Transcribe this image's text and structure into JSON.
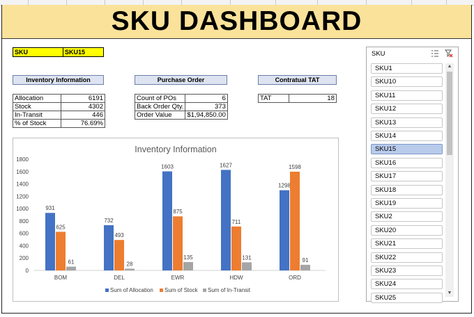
{
  "title": "SKU DASHBOARD",
  "sku_selector": {
    "label": "SKU",
    "value": "SKU15"
  },
  "inventory": {
    "header": "Inventory Information",
    "rows": [
      {
        "label": "Allocation",
        "value": "6191"
      },
      {
        "label": "Stock",
        "value": "4302"
      },
      {
        "label": "In-Transit",
        "value": "446"
      },
      {
        "label": "% of Stock",
        "value": "76.69%"
      }
    ]
  },
  "purchase_order": {
    "header": "Purchase Order",
    "rows": [
      {
        "label": "Count of POs",
        "value": "6"
      },
      {
        "label": "Back Order Qty.",
        "value": "373"
      },
      {
        "label": "Order Value",
        "value": "$1,94,850.00"
      }
    ]
  },
  "tat": {
    "header": "Contratual TAT",
    "rows": [
      {
        "label": "TAT",
        "value": "18"
      }
    ]
  },
  "colors": {
    "allocation": "#4472c4",
    "stock": "#ed7d31",
    "transit": "#a5a5a5",
    "title_bg": "#fbe29a",
    "selector_bg": "#ffff00",
    "selected_item": "#b9cbeb"
  },
  "chart_data": {
    "type": "bar",
    "title": "Inventory Information",
    "categories": [
      "BOM",
      "DEL",
      "EWR",
      "HDW",
      "ORD"
    ],
    "series": [
      {
        "name": "Sum of Allocation",
        "values": [
          931,
          732,
          1603,
          1627,
          1298
        ]
      },
      {
        "name": "Sum of Stock",
        "values": [
          625,
          493,
          875,
          711,
          1598
        ]
      },
      {
        "name": "Sum of In-Transit",
        "values": [
          61,
          28,
          135,
          131,
          91
        ]
      }
    ],
    "ylim": [
      0,
      1800
    ],
    "yticks": [
      0,
      200,
      400,
      600,
      800,
      1000,
      1200,
      1400,
      1600,
      1800
    ],
    "xlabel": "",
    "ylabel": "",
    "legend": "bottom",
    "grid": false
  },
  "slicer": {
    "title": "SKU",
    "multi_select_icon": "multi-select-icon",
    "clear_icon": "clear-filter-icon",
    "selected": "SKU15",
    "items": [
      "SKU1",
      "SKU10",
      "SKU11",
      "SKU12",
      "SKU13",
      "SKU14",
      "SKU15",
      "SKU16",
      "SKU17",
      "SKU18",
      "SKU19",
      "SKU2",
      "SKU20",
      "SKU21",
      "SKU22",
      "SKU23",
      "SKU24",
      "SKU25"
    ]
  }
}
